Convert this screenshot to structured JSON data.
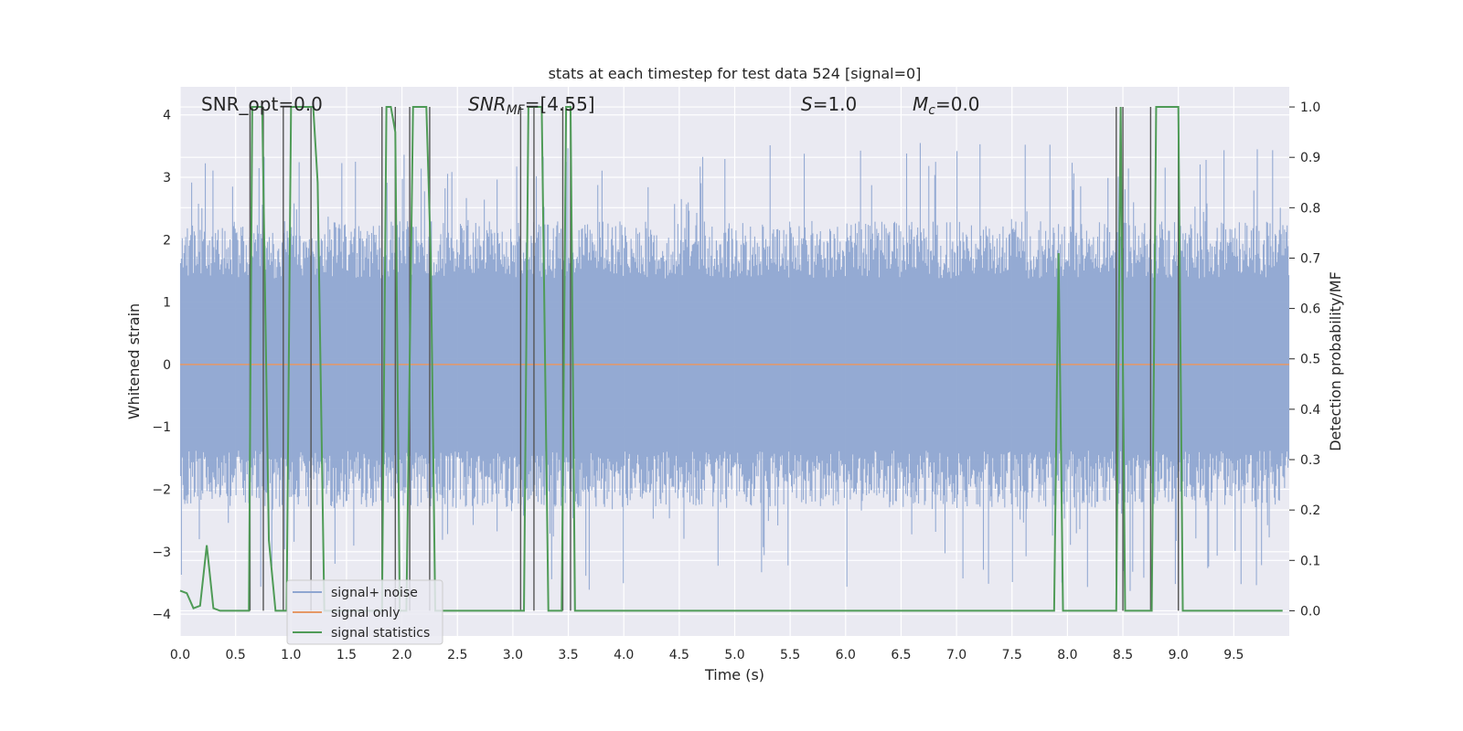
{
  "chart_data": {
    "type": "line",
    "title": "stats at each timestep for test data 524 [signal=0]",
    "xlabel": "Time (s)",
    "ylabel": "Whitened strain",
    "ylabel_right": "Detection probability/MF",
    "xlim": [
      0,
      10
    ],
    "ylim": [
      -4.35,
      4.45
    ],
    "ylim_right": [
      -0.05,
      1.04
    ],
    "x_ticks": [
      "0.0",
      "0.5",
      "1.0",
      "1.5",
      "2.0",
      "2.5",
      "3.0",
      "3.5",
      "4.0",
      "4.5",
      "5.0",
      "5.5",
      "6.0",
      "6.5",
      "7.0",
      "7.5",
      "8.0",
      "8.5",
      "9.0",
      "9.5"
    ],
    "y_ticks": [
      "−4",
      "−3",
      "−2",
      "−1",
      "0",
      "1",
      "2",
      "3",
      "4"
    ],
    "y_ticks_right": [
      "0.0",
      "0.1",
      "0.2",
      "0.3",
      "0.4",
      "0.5",
      "0.6",
      "0.7",
      "0.8",
      "0.9",
      "1.0"
    ],
    "grid": true,
    "legend_position": "lower-left",
    "annotations": {
      "snr_opt": "SNR_opt=0.0",
      "snr_mf": "=[4.55]",
      "s": "=1.0",
      "mc": "=0.0"
    },
    "series": [
      {
        "name": "signal+ noise",
        "color": "#8fa6d1",
        "axis": "left",
        "envelope": {
          "lower_typical": -2.3,
          "upper_typical": 2.3,
          "extreme_min": -3.65,
          "extreme_max": 3.55
        }
      },
      {
        "name": "signal only",
        "color": "#e59866",
        "axis": "left",
        "constant": 0.0
      },
      {
        "name": "signal statistics",
        "color": "#4f9b57",
        "axis": "right",
        "x": [
          0.0,
          0.06,
          0.12,
          0.18,
          0.24,
          0.3,
          0.36,
          0.42,
          0.5,
          0.58,
          0.62,
          0.65,
          0.68,
          0.74,
          0.8,
          0.86,
          0.92,
          0.96,
          1.0,
          1.04,
          1.1,
          1.16,
          1.2,
          1.24,
          1.3,
          1.36,
          1.42,
          1.5,
          1.6,
          1.7,
          1.78,
          1.82,
          1.86,
          1.9,
          1.94,
          1.98,
          2.04,
          2.1,
          2.14,
          2.18,
          2.22,
          2.26,
          2.3,
          2.34,
          2.4,
          2.5,
          2.7,
          2.9,
          3.0,
          3.06,
          3.1,
          3.14,
          3.2,
          3.26,
          3.32,
          3.38,
          3.44,
          3.48,
          3.52,
          3.56,
          3.7,
          4.0,
          5.0,
          6.0,
          7.0,
          7.5,
          7.8,
          7.84,
          7.88,
          7.92,
          7.96,
          8.1,
          8.3,
          8.4,
          8.44,
          8.48,
          8.52,
          8.56,
          8.6,
          8.68,
          8.76,
          8.8,
          8.86,
          8.92,
          8.96,
          9.0,
          9.04,
          9.1,
          9.3,
          9.6,
          9.94
        ],
        "values": [
          0.04,
          0.035,
          0.005,
          0.01,
          0.13,
          0.005,
          0.0,
          0.0,
          0.0,
          0.0,
          0.0,
          1.0,
          1.0,
          1.0,
          0.14,
          0.0,
          0.0,
          0.0,
          1.0,
          1.0,
          1.0,
          1.0,
          1.0,
          0.85,
          0.0,
          0.0,
          0.0,
          0.0,
          0.0,
          0.0,
          0.0,
          0.0,
          1.0,
          1.0,
          0.95,
          0.0,
          0.0,
          1.0,
          1.0,
          1.0,
          1.0,
          0.7,
          0.0,
          0.0,
          0.0,
          0.0,
          0.0,
          0.0,
          0.0,
          0.0,
          0.0,
          1.0,
          1.0,
          1.0,
          0.0,
          0.0,
          0.0,
          1.0,
          1.0,
          0.0,
          0.0,
          0.0,
          0.0,
          0.0,
          0.0,
          0.0,
          0.0,
          0.0,
          0.0,
          0.71,
          0.0,
          0.0,
          0.0,
          0.0,
          0.0,
          1.0,
          0.0,
          0.0,
          0.0,
          0.0,
          0.0,
          1.0,
          1.0,
          1.0,
          1.0,
          1.0,
          0.0,
          0.0,
          0.0,
          0.0,
          0.0
        ]
      }
    ],
    "vertical_markers": [
      0.63,
      0.75,
      0.93,
      1.18,
      1.82,
      1.94,
      2.07,
      2.25,
      3.07,
      3.19,
      3.45,
      3.52,
      8.44,
      8.5,
      8.75,
      9.0
    ]
  }
}
